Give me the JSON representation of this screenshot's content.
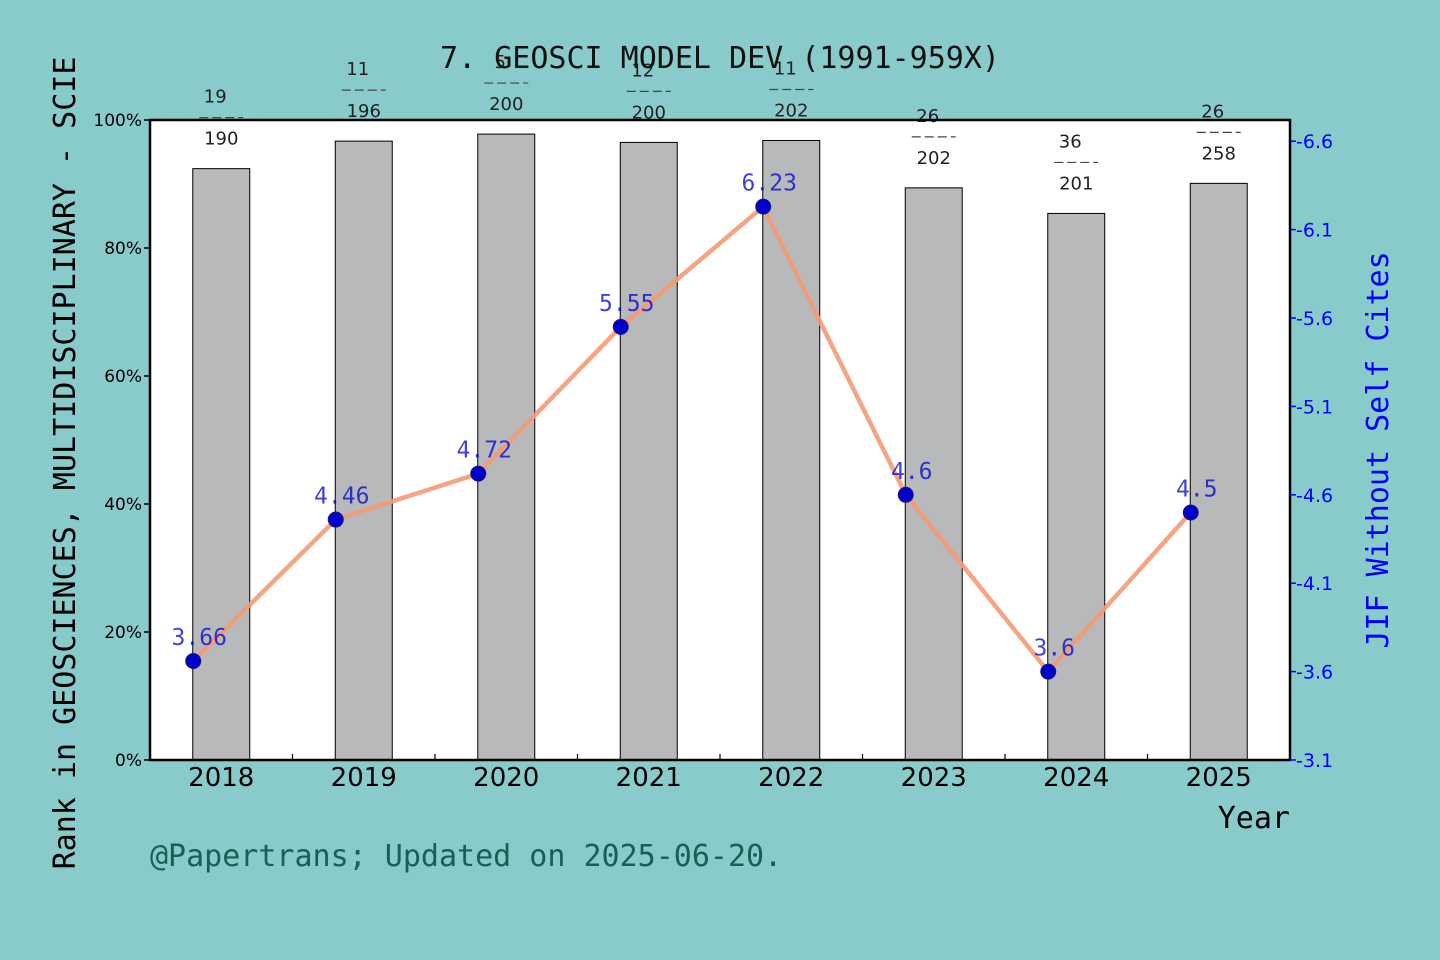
{
  "chart_data": {
    "type": "bar+line",
    "title": "7. GEOSCI MODEL DEV (1991-959X)",
    "xlabel": "Year",
    "ylabel_left": "Rank in GEOSCIENCES, MULTIDISCIPLINARY - SCIE",
    "ylabel_right": "JIF Without Self Cites",
    "categories": [
      "2018",
      "2019",
      "2020",
      "2021",
      "2022",
      "2023",
      "2024",
      "2025"
    ],
    "bar_series": {
      "values": [
        92.4,
        96.7,
        97.8,
        96.5,
        96.8,
        89.4,
        85.4,
        90.1
      ],
      "ylim": [
        0,
        100
      ],
      "yticks": [
        "0%",
        "20%",
        "40%",
        "60%",
        "80%",
        "100%"
      ],
      "rank_labels": [
        {
          "rank": "19",
          "total": "190"
        },
        {
          "rank": "11",
          "total": "196"
        },
        {
          "rank": "5",
          "total": "200"
        },
        {
          "rank": "12",
          "total": "200"
        },
        {
          "rank": "11",
          "total": "202"
        },
        {
          "rank": "26",
          "total": "202"
        },
        {
          "rank": "36",
          "total": "201"
        },
        {
          "rank": "26",
          "total": "258"
        }
      ],
      "color": "#b8b9bb"
    },
    "line_series": {
      "values": [
        3.66,
        4.46,
        4.72,
        5.55,
        6.23,
        4.6,
        3.6,
        4.5
      ],
      "labels": [
        "3.66",
        "4.46",
        "4.72",
        "5.55",
        "6.23",
        "4.6",
        "3.6",
        "4.5"
      ],
      "ylim": [
        3.1,
        6.72
      ],
      "yticks": [
        "3.1",
        "3.6",
        "4.1",
        "4.6",
        "5.1",
        "5.6",
        "6.1",
        "6.6"
      ],
      "line_color": "#f59a76",
      "marker_color": "#0000cd"
    },
    "grid": false,
    "footer": "@Papertrans; Updated on 2025-06-20.",
    "colors": {
      "background": "#88cbca",
      "plot_background": "#ffffff",
      "right_axis": "#0000ff",
      "footer_text": "#1b5e55"
    }
  }
}
